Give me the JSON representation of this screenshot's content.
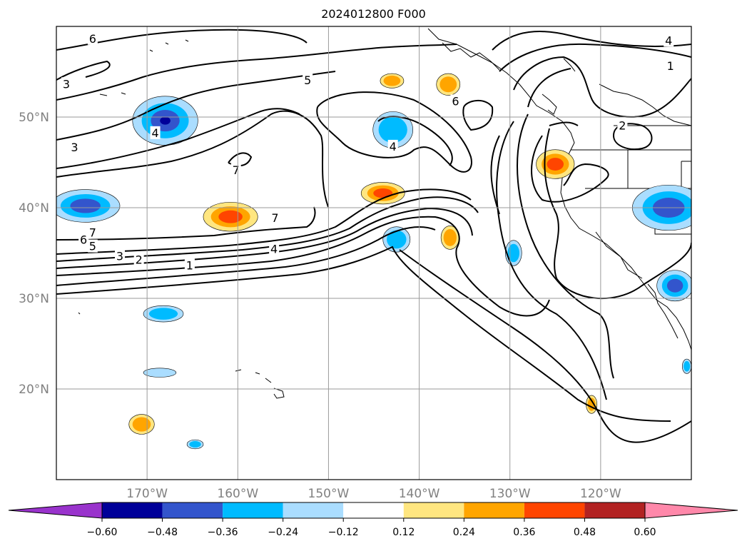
{
  "title": "2024012800 F000",
  "lat_labels": [
    {
      "text": "50°N",
      "lat": 50
    },
    {
      "text": "40°N",
      "lat": 40
    },
    {
      "text": "30°N",
      "lat": 30
    },
    {
      "text": "20°N",
      "lat": 20
    }
  ],
  "lon_labels": [
    {
      "text": "170°W",
      "lon": -170
    },
    {
      "text": "160°W",
      "lon": -160
    },
    {
      "text": "150°W",
      "lon": -150
    },
    {
      "text": "140°W",
      "lon": -140
    },
    {
      "text": "130°W",
      "lon": -130
    },
    {
      "text": "120°W",
      "lon": -120
    }
  ],
  "map_extent": {
    "lon_min": -180,
    "lon_max": -110,
    "lat_min": 10,
    "lat_max": 60
  },
  "colorbar": {
    "ticks": [
      "−0.60",
      "−0.48",
      "−0.36",
      "−0.24",
      "−0.12",
      "0.12",
      "0.24",
      "0.36",
      "0.48",
      "0.60"
    ],
    "colors": [
      "#9933cc",
      "#000099",
      "#3355cc",
      "#00bbff",
      "#aaddff",
      "#ffffff",
      "#ffe680",
      "#ffa500",
      "#ff4500",
      "#b22222",
      "#ff88aa"
    ]
  },
  "contour_labels": [
    {
      "text": "6",
      "lon": -176,
      "lat": 58.6
    },
    {
      "text": "3",
      "lon": -178.9,
      "lat": 53.6
    },
    {
      "text": "3",
      "lon": -178.0,
      "lat": 46.6
    },
    {
      "text": "4",
      "lon": -169.1,
      "lat": 48.2
    },
    {
      "text": "7",
      "lon": -160.2,
      "lat": 44.1
    },
    {
      "text": "7",
      "lon": -155.9,
      "lat": 38.8
    },
    {
      "text": "7",
      "lon": -176.0,
      "lat": 37.2
    },
    {
      "text": "6",
      "lon": -177.0,
      "lat": 36.4
    },
    {
      "text": "5",
      "lon": -176.0,
      "lat": 35.7
    },
    {
      "text": "3",
      "lon": -173.0,
      "lat": 34.6
    },
    {
      "text": "2",
      "lon": -170.9,
      "lat": 34.2
    },
    {
      "text": "1",
      "lon": -165.3,
      "lat": 33.6
    },
    {
      "text": "4",
      "lon": -156.0,
      "lat": 35.4
    },
    {
      "text": "5",
      "lon": -152.3,
      "lat": 54.0
    },
    {
      "text": "4",
      "lon": -142.9,
      "lat": 46.7
    },
    {
      "text": "6",
      "lon": -136.0,
      "lat": 51.7
    },
    {
      "text": "4",
      "lon": -112.5,
      "lat": 58.4
    },
    {
      "text": "1",
      "lon": -112.3,
      "lat": 55.6
    },
    {
      "text": "2",
      "lon": -117.6,
      "lat": 49.0
    }
  ],
  "anomalies": [
    {
      "lon": -168.0,
      "lat": 49.6,
      "rx": 3.6,
      "ry": 2.7,
      "value": -0.5
    },
    {
      "lon": -176.8,
      "lat": 40.2,
      "rx": 3.8,
      "ry": 1.8,
      "value": -0.4
    },
    {
      "lon": -160.8,
      "lat": 39.0,
      "rx": 3.0,
      "ry": 1.6,
      "value": 0.4
    },
    {
      "lon": -144.0,
      "lat": 41.6,
      "rx": 2.4,
      "ry": 1.2,
      "value": 0.38
    },
    {
      "lon": -142.9,
      "lat": 48.6,
      "rx": 2.2,
      "ry": 2.0,
      "value": -0.34
    },
    {
      "lon": -143.0,
      "lat": 54.0,
      "rx": 1.3,
      "ry": 0.8,
      "value": 0.28
    },
    {
      "lon": -136.8,
      "lat": 53.6,
      "rx": 1.3,
      "ry": 1.2,
      "value": 0.28
    },
    {
      "lon": -125.0,
      "lat": 44.8,
      "rx": 2.1,
      "ry": 1.6,
      "value": 0.42
    },
    {
      "lon": -142.5,
      "lat": 36.5,
      "rx": 1.5,
      "ry": 1.4,
      "value": -0.32
    },
    {
      "lon": -136.6,
      "lat": 36.7,
      "rx": 1.0,
      "ry": 1.3,
      "value": 0.28
    },
    {
      "lon": -129.6,
      "lat": 35.0,
      "rx": 0.9,
      "ry": 1.4,
      "value": -0.3
    },
    {
      "lon": -112.5,
      "lat": 40.0,
      "rx": 4.0,
      "ry": 2.5,
      "value": -0.45
    },
    {
      "lon": -111.8,
      "lat": 31.4,
      "rx": 2.0,
      "ry": 1.7,
      "value": -0.42
    },
    {
      "lon": -168.2,
      "lat": 28.3,
      "rx": 2.2,
      "ry": 0.9,
      "value": -0.3
    },
    {
      "lon": -168.6,
      "lat": 21.8,
      "rx": 1.8,
      "ry": 0.5,
      "value": -0.22
    },
    {
      "lon": -170.6,
      "lat": 16.1,
      "rx": 1.4,
      "ry": 1.1,
      "value": 0.3
    },
    {
      "lon": -164.7,
      "lat": 13.9,
      "rx": 0.9,
      "ry": 0.5,
      "value": -0.28
    },
    {
      "lon": -121.0,
      "lat": 18.3,
      "rx": 0.6,
      "ry": 1.0,
      "value": 0.28
    },
    {
      "lon": -110.5,
      "lat": 22.5,
      "rx": 0.5,
      "ry": 0.8,
      "value": -0.26
    }
  ]
}
